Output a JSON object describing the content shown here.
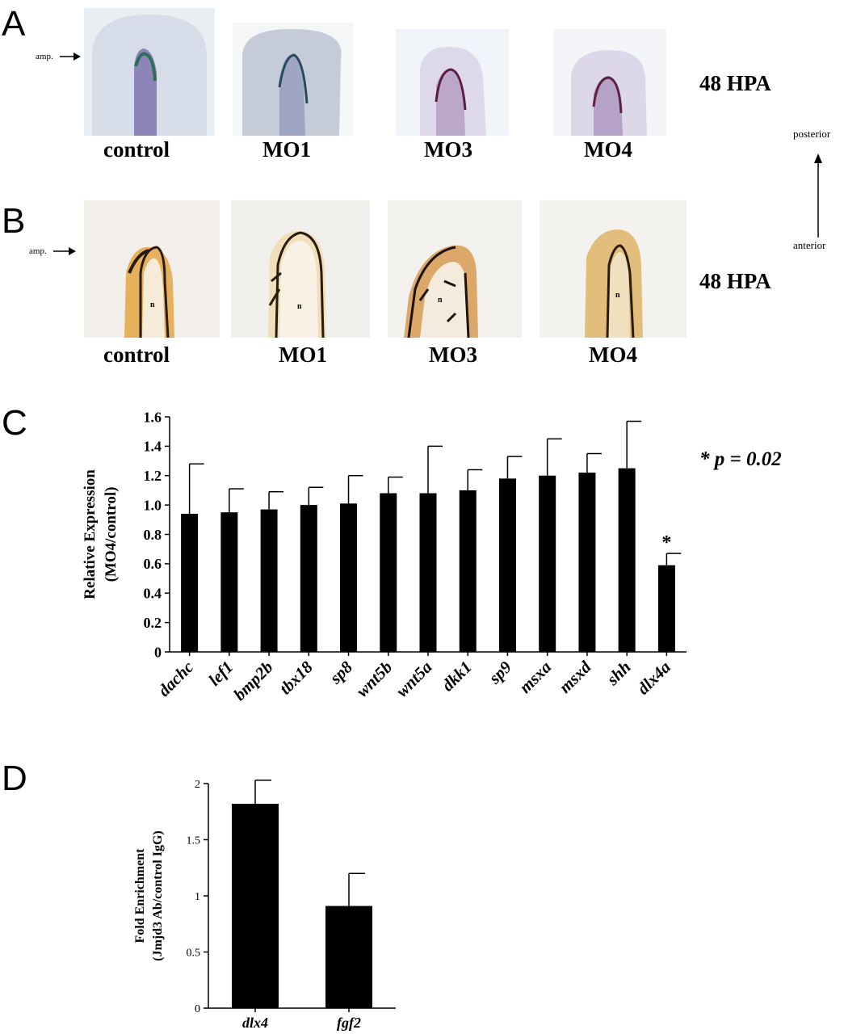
{
  "panel_a": {
    "letter": "A",
    "amp_label": "amp.",
    "hpa": "48 HPA",
    "labels": [
      "control",
      "MO1",
      "MO3",
      "MO4"
    ]
  },
  "panel_b": {
    "letter": "B",
    "amp_label": "amp.",
    "hpa": "48 HPA",
    "labels": [
      "control",
      "MO1",
      "MO3",
      "MO4"
    ],
    "notochord": "n"
  },
  "axis_arrow": {
    "top": "posterior",
    "bottom": "anterior"
  },
  "panel_c": {
    "letter": "C",
    "pvalue": "* p = 0.02"
  },
  "panel_d": {
    "letter": "D"
  },
  "chart_data": [
    {
      "type": "bar",
      "ylabel_lines": [
        "Relative Expression",
        "(MO4/control)"
      ],
      "categories": [
        "dachc",
        "lef1",
        "bmp2b",
        "tbx18",
        "sp8",
        "wnt5b",
        "wnt5a",
        "dkk1",
        "sp9",
        "msxa",
        "msxd",
        "shh",
        "dlx4a"
      ],
      "values": [
        0.94,
        0.95,
        0.97,
        1.0,
        1.01,
        1.08,
        1.08,
        1.1,
        1.18,
        1.2,
        1.22,
        1.25,
        0.59
      ],
      "errors": [
        0.34,
        0.16,
        0.12,
        0.12,
        0.19,
        0.11,
        0.32,
        0.14,
        0.15,
        0.25,
        0.13,
        0.32,
        0.08
      ],
      "ylim": [
        0,
        1.6
      ],
      "yticks": [
        "0",
        "0.2",
        "0.4",
        "0.6",
        "0.8",
        "1.0",
        "1.2",
        "1.4",
        "1.6"
      ],
      "annotation": "*"
    },
    {
      "type": "bar",
      "ylabel_lines": [
        "Fold Enrichment",
        "(Jmjd3 Ab/control IgG)"
      ],
      "categories": [
        "dlx4",
        "fgf2"
      ],
      "values": [
        1.82,
        0.91
      ],
      "errors": [
        0.21,
        0.29
      ],
      "ylim": [
        0,
        2
      ],
      "yticks": [
        "0",
        "0.5",
        "1",
        "1.5",
        "2"
      ]
    }
  ]
}
